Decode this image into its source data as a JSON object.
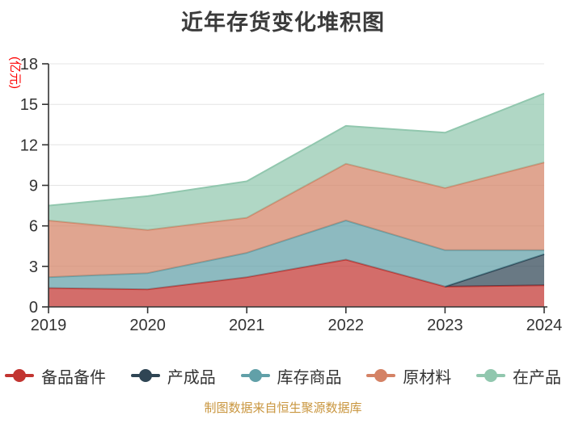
{
  "title": "近年存货变化堆积图",
  "source_note": "制图数据来自恒生聚源数据库",
  "chart_data": {
    "type": "area",
    "stacked": true,
    "title": "近年存货变化堆积图",
    "ylabel": "(亿元)",
    "xlabel": "",
    "ylim": [
      0,
      18
    ],
    "y_ticks": [
      0,
      3,
      6,
      9,
      12,
      15,
      18
    ],
    "categories": [
      "2019",
      "2020",
      "2021",
      "2022",
      "2023",
      "2024"
    ],
    "series": [
      {
        "name": "备品备件",
        "color": "#c23531",
        "values": [
          1.4,
          1.3,
          2.2,
          3.5,
          1.5,
          1.6
        ]
      },
      {
        "name": "产成品",
        "color": "#2f4554",
        "values": [
          0,
          0,
          0,
          0,
          0,
          2.3
        ]
      },
      {
        "name": "库存商品",
        "color": "#61a0a8",
        "values": [
          0.8,
          1.2,
          1.8,
          2.9,
          2.7,
          0.3
        ]
      },
      {
        "name": "原材料",
        "color": "#d48265",
        "values": [
          4.2,
          3.2,
          2.6,
          4.2,
          4.6,
          6.5
        ]
      },
      {
        "name": "在产品",
        "color": "#91c7ae",
        "values": [
          1.1,
          2.5,
          2.7,
          2.8,
          4.1,
          5.1
        ]
      }
    ],
    "totals": [
      7.5,
      8.2,
      9.3,
      13.4,
      12.9,
      15.8
    ],
    "legend_position": "bottom",
    "grid": true,
    "area_opacity": 0.72
  },
  "style": {
    "axis_color": "#333333",
    "grid_color": "#e4e4e4",
    "tick_label_color": "#333333",
    "title_color": "#3b3b3b",
    "unit_label_color": "#fe0000",
    "source_note_color": "#c9963f"
  }
}
